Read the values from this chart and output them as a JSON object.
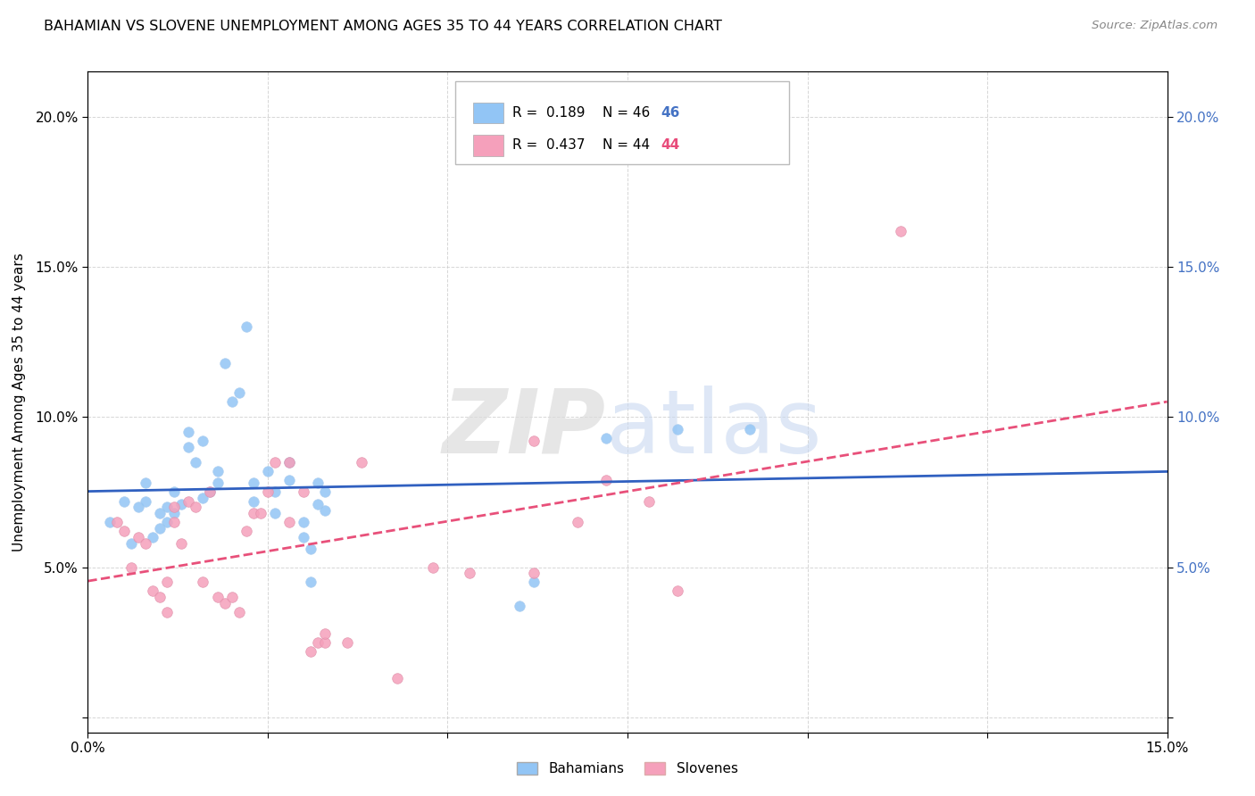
{
  "title": "BAHAMIAN VS SLOVENE UNEMPLOYMENT AMONG AGES 35 TO 44 YEARS CORRELATION CHART",
  "source": "Source: ZipAtlas.com",
  "ylabel": "Unemployment Among Ages 35 to 44 years",
  "xlim": [
    0.0,
    0.15
  ],
  "ylim": [
    -0.005,
    0.215
  ],
  "xticks": [
    0.0,
    0.025,
    0.05,
    0.075,
    0.1,
    0.125,
    0.15
  ],
  "yticks": [
    0.0,
    0.05,
    0.1,
    0.15,
    0.2
  ],
  "legend_r_blue": "0.189",
  "legend_n_blue": "46",
  "legend_r_pink": "0.437",
  "legend_n_pink": "44",
  "blue_color": "#92C5F5",
  "pink_color": "#F5A0BB",
  "blue_line_color": "#3060C0",
  "pink_line_color": "#E8507A",
  "blue_scatter": [
    [
      0.003,
      0.065
    ],
    [
      0.005,
      0.072
    ],
    [
      0.006,
      0.058
    ],
    [
      0.007,
      0.07
    ],
    [
      0.008,
      0.072
    ],
    [
      0.008,
      0.078
    ],
    [
      0.009,
      0.06
    ],
    [
      0.01,
      0.063
    ],
    [
      0.01,
      0.068
    ],
    [
      0.011,
      0.065
    ],
    [
      0.011,
      0.07
    ],
    [
      0.012,
      0.075
    ],
    [
      0.012,
      0.068
    ],
    [
      0.013,
      0.071
    ],
    [
      0.014,
      0.09
    ],
    [
      0.014,
      0.095
    ],
    [
      0.015,
      0.085
    ],
    [
      0.016,
      0.092
    ],
    [
      0.016,
      0.073
    ],
    [
      0.017,
      0.075
    ],
    [
      0.018,
      0.078
    ],
    [
      0.018,
      0.082
    ],
    [
      0.019,
      0.118
    ],
    [
      0.02,
      0.105
    ],
    [
      0.021,
      0.108
    ],
    [
      0.022,
      0.13
    ],
    [
      0.023,
      0.072
    ],
    [
      0.023,
      0.078
    ],
    [
      0.025,
      0.082
    ],
    [
      0.026,
      0.075
    ],
    [
      0.026,
      0.068
    ],
    [
      0.028,
      0.079
    ],
    [
      0.028,
      0.085
    ],
    [
      0.03,
      0.065
    ],
    [
      0.03,
      0.06
    ],
    [
      0.031,
      0.056
    ],
    [
      0.031,
      0.045
    ],
    [
      0.032,
      0.078
    ],
    [
      0.032,
      0.071
    ],
    [
      0.033,
      0.069
    ],
    [
      0.033,
      0.075
    ],
    [
      0.06,
      0.037
    ],
    [
      0.062,
      0.045
    ],
    [
      0.072,
      0.093
    ],
    [
      0.082,
      0.096
    ],
    [
      0.092,
      0.096
    ]
  ],
  "pink_scatter": [
    [
      0.004,
      0.065
    ],
    [
      0.005,
      0.062
    ],
    [
      0.006,
      0.05
    ],
    [
      0.007,
      0.06
    ],
    [
      0.008,
      0.058
    ],
    [
      0.009,
      0.042
    ],
    [
      0.01,
      0.04
    ],
    [
      0.011,
      0.035
    ],
    [
      0.011,
      0.045
    ],
    [
      0.012,
      0.07
    ],
    [
      0.012,
      0.065
    ],
    [
      0.013,
      0.058
    ],
    [
      0.014,
      0.072
    ],
    [
      0.015,
      0.07
    ],
    [
      0.016,
      0.045
    ],
    [
      0.017,
      0.075
    ],
    [
      0.018,
      0.04
    ],
    [
      0.019,
      0.038
    ],
    [
      0.02,
      0.04
    ],
    [
      0.021,
      0.035
    ],
    [
      0.022,
      0.062
    ],
    [
      0.023,
      0.068
    ],
    [
      0.024,
      0.068
    ],
    [
      0.025,
      0.075
    ],
    [
      0.026,
      0.085
    ],
    [
      0.028,
      0.065
    ],
    [
      0.028,
      0.085
    ],
    [
      0.03,
      0.075
    ],
    [
      0.031,
      0.022
    ],
    [
      0.032,
      0.025
    ],
    [
      0.033,
      0.025
    ],
    [
      0.033,
      0.028
    ],
    [
      0.036,
      0.025
    ],
    [
      0.038,
      0.085
    ],
    [
      0.043,
      0.013
    ],
    [
      0.048,
      0.05
    ],
    [
      0.053,
      0.048
    ],
    [
      0.062,
      0.092
    ],
    [
      0.062,
      0.048
    ],
    [
      0.068,
      0.065
    ],
    [
      0.072,
      0.079
    ],
    [
      0.078,
      0.072
    ],
    [
      0.082,
      0.042
    ],
    [
      0.113,
      0.162
    ]
  ],
  "background_color": "#FFFFFF",
  "grid_color": "#CCCCCC"
}
